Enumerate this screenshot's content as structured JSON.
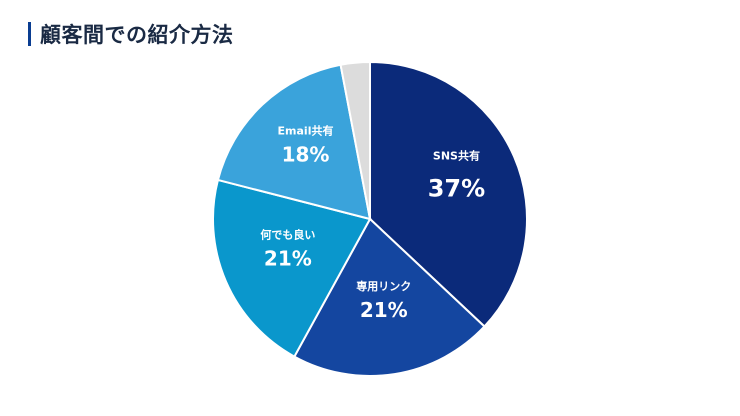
{
  "title": "顧客間での紹介方法",
  "colors": {
    "title_accent": "#0a3d91",
    "slice_edge": "#ffffff"
  },
  "chart_data": {
    "type": "pie",
    "title": "顧客間での紹介方法",
    "start": "top",
    "direction": "clockwise",
    "slices": [
      {
        "label": "SNS共有",
        "value": 37,
        "display": "37%",
        "color": "#0b2a7a"
      },
      {
        "label": "専用リンク",
        "value": 21,
        "display": "21%",
        "color": "#1446a0"
      },
      {
        "label": "何でも良い",
        "value": 21,
        "display": "21%",
        "color": "#0a97cc"
      },
      {
        "label": "Email共有",
        "value": 18,
        "display": "18%",
        "color": "#3aa3db"
      },
      {
        "label": "",
        "value": 3,
        "display": "",
        "color": "#dcdcdc"
      }
    ]
  }
}
